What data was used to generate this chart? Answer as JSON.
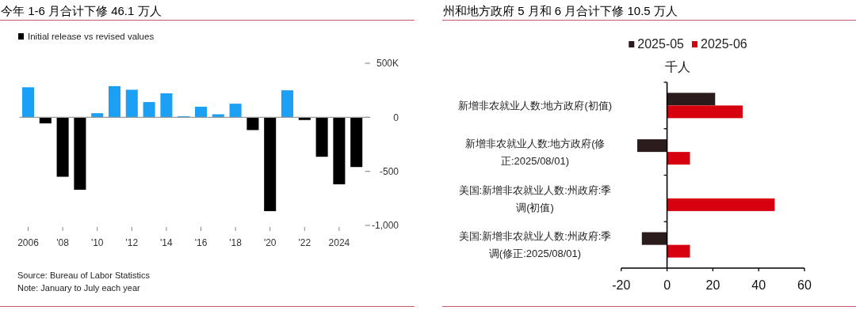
{
  "chart_data": [
    {
      "type": "bar",
      "title": "今年 1-6 月合计下修 46.1 万人",
      "categories": [
        "2006",
        null,
        "'08",
        null,
        "'10",
        null,
        "'12",
        null,
        "'14",
        null,
        "'16",
        null,
        "'18",
        null,
        "'20",
        null,
        "'22",
        null,
        "2024",
        null
      ],
      "series": [
        {
          "name": "Initial release vs revised values",
          "color": "#000000",
          "colors": [
            "#1ba0f5",
            "#000000",
            "#000000",
            "#000000",
            "#1ba0f5",
            "#1ba0f5",
            "#1ba0f5",
            "#1ba0f5",
            "#1ba0f5",
            "#1ba0f5",
            "#1ba0f5",
            "#1ba0f5",
            "#1ba0f5",
            "#000000",
            "#000000",
            "#1ba0f5",
            "#000000",
            "#000000",
            "#000000",
            "#000000"
          ],
          "values": [
            278,
            -56,
            -550,
            -670,
            38,
            288,
            255,
            141,
            222,
            10,
            98,
            28,
            126,
            -118,
            -868,
            250,
            -25,
            -365,
            -620,
            -460
          ]
        }
      ],
      "ylim": [
        -1000,
        500
      ],
      "yticks": [
        {
          "value": 500,
          "label": "500K"
        },
        0,
        -500,
        {
          "value": -1000,
          "label": "-1,000"
        }
      ],
      "legend": "top left",
      "annotations": [
        "Source: Bureau of Labor Statistics",
        "Note: January to July each year"
      ]
    },
    {
      "type": "bar",
      "orientation": "horizontal",
      "title": "州和地方政府 5 月和 6 月合计下修 10.5 万人",
      "xlabel": "千人",
      "categories": [
        "新增非农就业人数:地方政府(初值)",
        "新增非农就业人数:地方政府(修正:2025/08/01)",
        "美国:新增非农就业人数:州政府:季调(初值)",
        "美国:新增非农就业人数:州政府:季调(修正:2025/08/01)"
      ],
      "series": [
        {
          "name": "2025-05",
          "color": "#2a1c1c",
          "values": [
            21,
            -13,
            null,
            -11
          ]
        },
        {
          "name": "2025-06",
          "color": "#d7000f",
          "values": [
            33,
            10,
            47,
            10
          ]
        }
      ],
      "xlim": [
        -20,
        60
      ],
      "xticks": [
        -20,
        0,
        20,
        40,
        60
      ],
      "legend": "top"
    }
  ]
}
